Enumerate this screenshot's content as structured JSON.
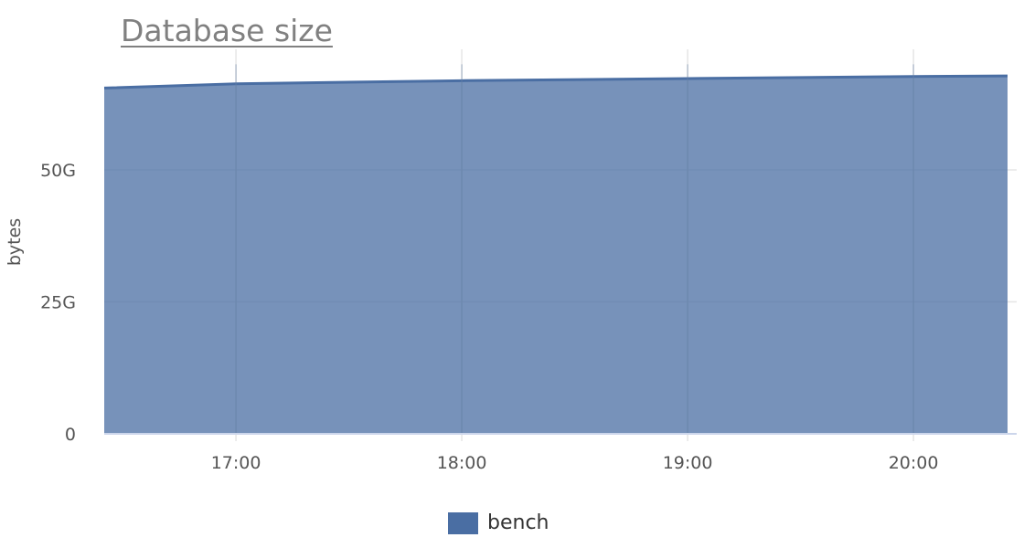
{
  "chart_data": {
    "type": "area",
    "title": "Database size",
    "xlabel": "",
    "ylabel": "bytes",
    "x": [
      "16:25",
      "17:00",
      "18:00",
      "19:00",
      "20:00",
      "20:25"
    ],
    "x_ticks": [
      "17:00",
      "18:00",
      "19:00",
      "20:00"
    ],
    "y_ticks": [
      {
        "value": 0,
        "label": "0"
      },
      {
        "value": 25,
        "label": "25G"
      },
      {
        "value": 50,
        "label": "50G"
      }
    ],
    "ylim": [
      0,
      73
    ],
    "y_unit": "G",
    "grid": true,
    "legend": "bottom",
    "series": [
      {
        "name": "bench",
        "color": "#4a6ea3",
        "values": [
          65.5,
          66.3,
          66.9,
          67.3,
          67.7,
          67.8
        ]
      }
    ]
  }
}
